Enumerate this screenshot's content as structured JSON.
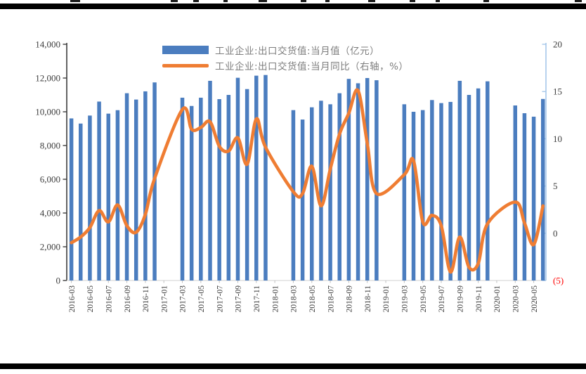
{
  "chart_data": {
    "type": "combo_bar_line",
    "x_axis": {
      "start": "2016-03",
      "end": "2020-06",
      "tick_labels": [
        "2016-03",
        "2016-05",
        "2016-07",
        "2016-09",
        "2016-11",
        "2017-01",
        "2017-03",
        "2017-05",
        "2017-07",
        "2017-09",
        "2017-11",
        "2018-01",
        "2018-03",
        "2018-05",
        "2018-07",
        "2018-09",
        "2018-11",
        "2019-01",
        "2019-03",
        "2019-05",
        "2019-07",
        "2019-09",
        "2019-11",
        "2020-01",
        "2020-03",
        "2020-05"
      ],
      "note": "no bars for January and February of each year"
    },
    "left_axis": {
      "min": 0,
      "max": 14000,
      "step": 2000,
      "labels": [
        "0",
        "2,000",
        "4,000",
        "6,000",
        "8,000",
        "10,000",
        "12,000",
        "14,000"
      ]
    },
    "right_axis": {
      "min": -5,
      "max": 20,
      "step": 5,
      "labels": [
        "(5)",
        "0",
        "5",
        "10",
        "15",
        "20"
      ],
      "negative_label_color": "#ff0000"
    },
    "months": [
      "2016-03",
      "2016-04",
      "2016-05",
      "2016-06",
      "2016-07",
      "2016-08",
      "2016-09",
      "2016-10",
      "2016-11",
      "2016-12",
      "2017-03",
      "2017-04",
      "2017-05",
      "2017-06",
      "2017-07",
      "2017-08",
      "2017-09",
      "2017-10",
      "2017-11",
      "2017-12",
      "2018-03",
      "2018-04",
      "2018-05",
      "2018-06",
      "2018-07",
      "2018-08",
      "2018-09",
      "2018-10",
      "2018-11",
      "2018-12",
      "2019-03",
      "2019-04",
      "2019-05",
      "2019-06",
      "2019-07",
      "2019-08",
      "2019-09",
      "2019-10",
      "2019-11",
      "2019-12",
      "2020-03",
      "2020-04",
      "2020-05",
      "2020-06"
    ],
    "series": [
      {
        "name": "工业企业:出口交货值:当月值（亿元）",
        "type": "bar",
        "axis": "left",
        "color": "#4b7dbf",
        "values": [
          9607,
          9302,
          9775,
          10605,
          9890,
          10095,
          11100,
          10725,
          11210,
          11740,
          10835,
          10345,
          10835,
          11835,
          10750,
          11000,
          12015,
          11345,
          12140,
          12180,
          10098,
          9540,
          10265,
          10655,
          10445,
          11100,
          11950,
          11690,
          12000,
          11870,
          10445,
          10000,
          10100,
          10695,
          10515,
          10585,
          11835,
          11000,
          11385,
          11805,
          10375,
          9915,
          9710,
          10760
        ]
      },
      {
        "name": "工业企业:出口交货值:当月同比（右轴，%）",
        "type": "line",
        "axis": "right",
        "color": "#ef7d33",
        "values": [
          -1.0,
          -0.4,
          0.6,
          2.4,
          1.2,
          3.0,
          0.8,
          0.1,
          2.0,
          5.8,
          13.1,
          11.0,
          11.2,
          11.8,
          9.2,
          8.7,
          10.1,
          7.3,
          12.1,
          9.1,
          4.4,
          4.2,
          7.1,
          2.9,
          6.8,
          10.5,
          12.7,
          15.1,
          9.5,
          4.2,
          6.2,
          7.7,
          1.2,
          1.9,
          0.8,
          -4.1,
          -0.4,
          -3.6,
          -3.2,
          1.0,
          3.3,
          1.1,
          -1.2,
          2.9
        ]
      }
    ]
  }
}
